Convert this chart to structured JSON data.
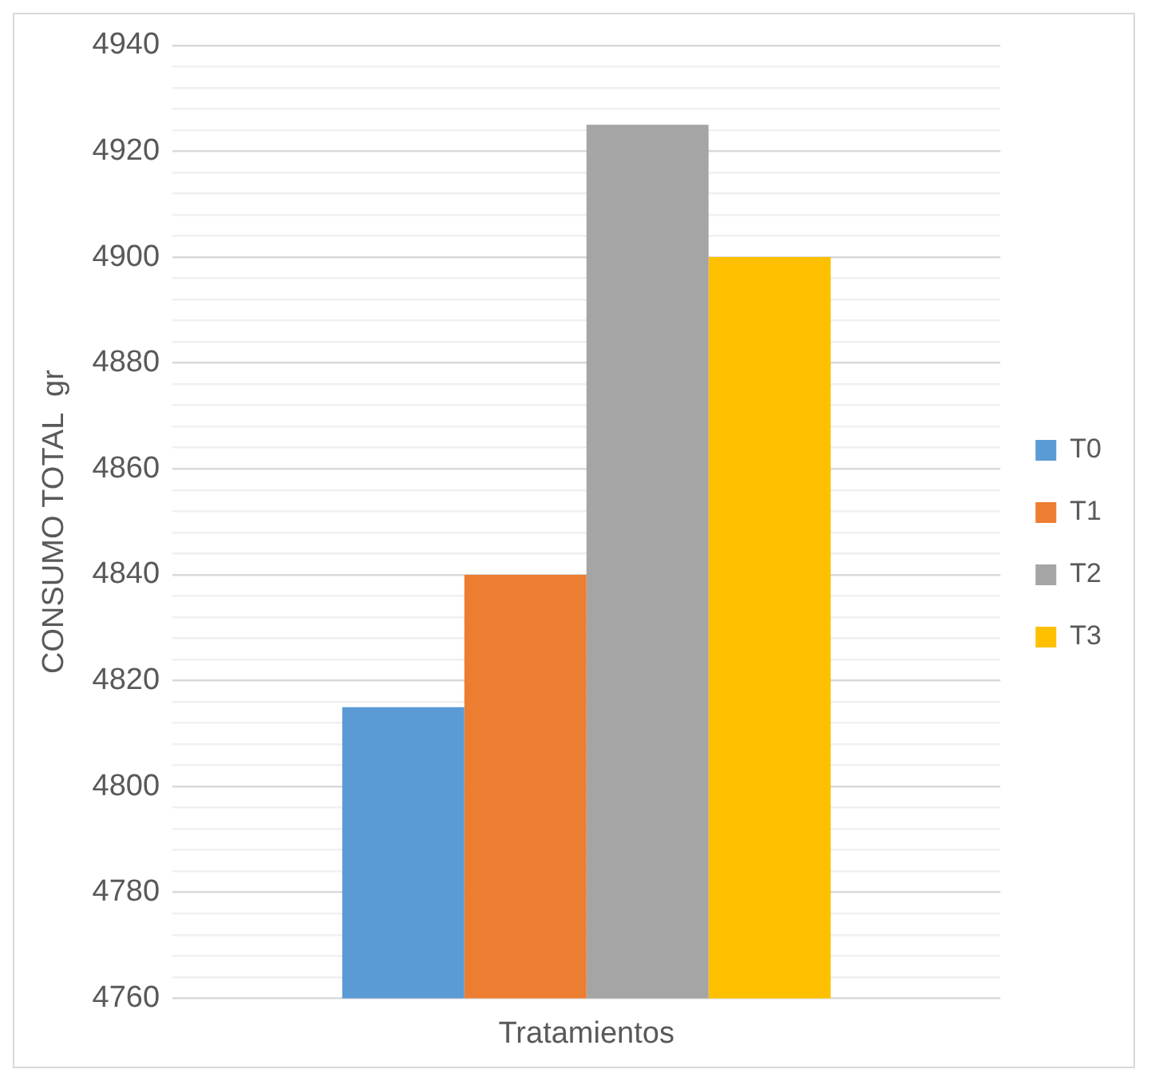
{
  "chart_data": {
    "type": "bar",
    "ylabel": "CONSUMO TOTAL  gr",
    "categories": [
      "Tratamientos"
    ],
    "series": [
      {
        "name": "T0",
        "color": "#5b9bd5",
        "values": [
          4815
        ]
      },
      {
        "name": "T1",
        "color": "#ed7d31",
        "values": [
          4840
        ]
      },
      {
        "name": "T2",
        "color": "#a5a5a5",
        "values": [
          4925
        ]
      },
      {
        "name": "T3",
        "color": "#ffc000",
        "values": [
          4900
        ]
      }
    ],
    "ylim": [
      4760,
      4940
    ],
    "yticks": [
      4760,
      {
        "value": 4764,
        "label": null
      },
      {
        "value": 4768,
        "label": null
      },
      {
        "value": 4772,
        "label": null
      },
      {
        "value": 4776,
        "label": null
      },
      4780,
      {
        "value": 4784,
        "label": null
      },
      {
        "value": 4788,
        "label": null
      },
      {
        "value": 4792,
        "label": null
      },
      {
        "value": 4796,
        "label": null
      },
      4800,
      {
        "value": 4804,
        "label": null
      },
      {
        "value": 4808,
        "label": null
      },
      {
        "value": 4812,
        "label": null
      },
      {
        "value": 4816,
        "label": null
      },
      4820,
      {
        "value": 4824,
        "label": null
      },
      {
        "value": 4828,
        "label": null
      },
      {
        "value": 4832,
        "label": null
      },
      {
        "value": 4836,
        "label": null
      },
      4840,
      {
        "value": 4844,
        "label": null
      },
      {
        "value": 4848,
        "label": null
      },
      {
        "value": 4852,
        "label": null
      },
      {
        "value": 4856,
        "label": null
      },
      4860,
      {
        "value": 4864,
        "label": null
      },
      {
        "value": 4868,
        "label": null
      },
      {
        "value": 4872,
        "label": null
      },
      {
        "value": 4876,
        "label": null
      },
      4880,
      {
        "value": 4884,
        "label": null
      },
      {
        "value": 4888,
        "label": null
      },
      {
        "value": 4892,
        "label": null
      },
      {
        "value": 4896,
        "label": null
      },
      4900,
      {
        "value": 4904,
        "label": null
      },
      {
        "value": 4908,
        "label": null
      },
      {
        "value": 4912,
        "label": null
      },
      {
        "value": 4916,
        "label": null
      },
      4920,
      {
        "value": 4924,
        "label": null
      },
      {
        "value": 4928,
        "label": null
      },
      {
        "value": 4932,
        "label": null
      },
      {
        "value": 4936,
        "label": null
      },
      4940
    ],
    "grid": "y",
    "legend": "right"
  }
}
